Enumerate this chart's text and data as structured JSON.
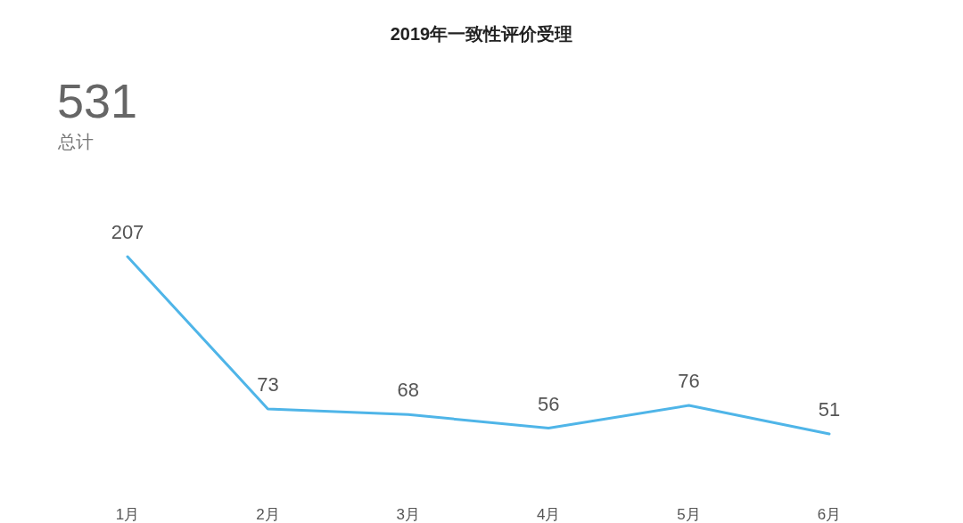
{
  "chart_data": {
    "type": "line",
    "title": "2019年一致性评价受理",
    "annotations": [
      "531",
      "总计"
    ],
    "categories": [
      "1月",
      "2月",
      "3月",
      "4月",
      "5月",
      "6月"
    ],
    "series": [
      {
        "color": "#4fb5e8",
        "values": [
          207,
          73,
          68,
          56,
          76,
          51
        ]
      }
    ],
    "data_labels": true,
    "marker": "none",
    "line_style": "solid"
  }
}
